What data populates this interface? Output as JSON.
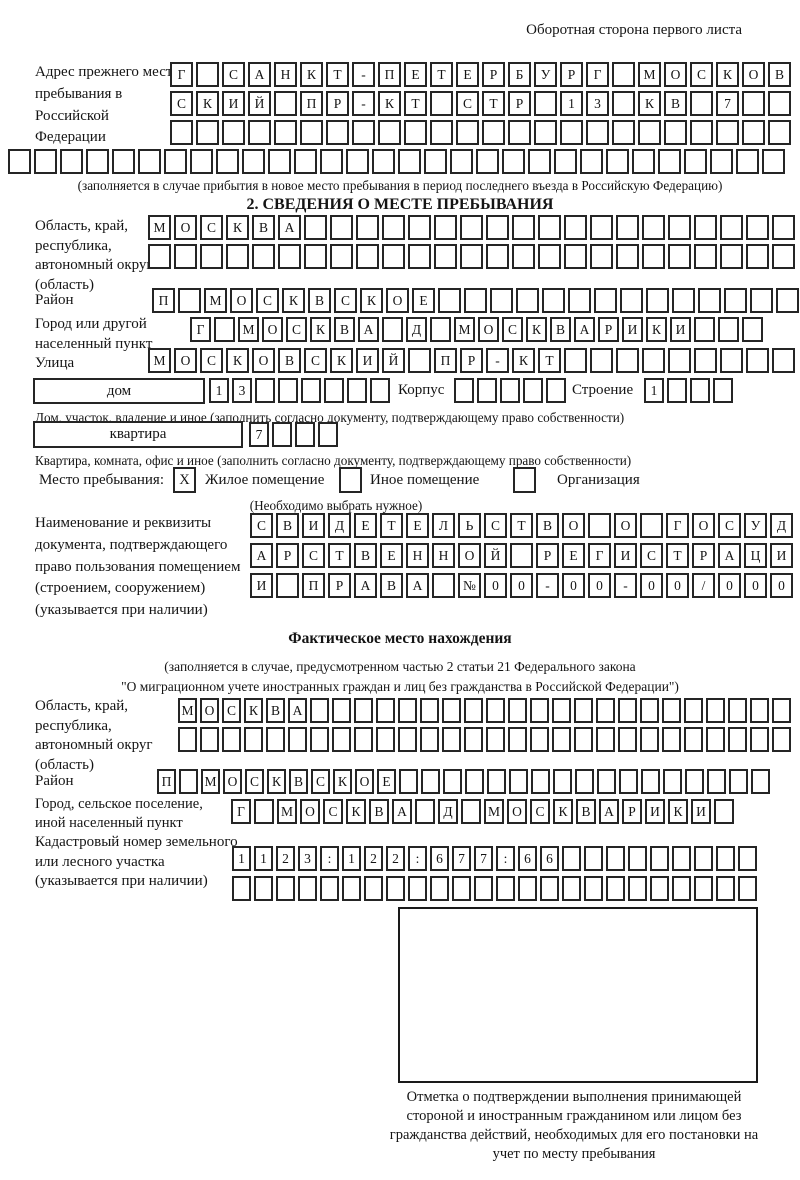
{
  "header": {
    "back_note": "Оборотная сторона первого листа"
  },
  "prev_address": {
    "label": "Адрес прежнего места пребывания в Российской Федерации",
    "row1": [
      "Г",
      "",
      "С",
      "А",
      "Н",
      "К",
      "Т",
      "-",
      "П",
      "Е",
      "Т",
      "Е",
      "Р",
      "Б",
      "У",
      "Р",
      "Г",
      "",
      "М",
      "О",
      "С",
      "К",
      "О",
      "В"
    ],
    "row2": [
      "С",
      "К",
      "И",
      "Й",
      "",
      "П",
      "Р",
      "-",
      "К",
      "Т",
      "",
      "С",
      "Т",
      "Р",
      "",
      "1",
      "3",
      "",
      "К",
      "В",
      "",
      "7",
      "",
      ""
    ],
    "row3": [
      "",
      "",
      "",
      "",
      "",
      "",
      "",
      "",
      "",
      "",
      "",
      "",
      "",
      "",
      "",
      "",
      "",
      "",
      "",
      "",
      "",
      "",
      "",
      ""
    ],
    "row4": [
      "",
      "",
      "",
      "",
      "",
      "",
      "",
      "",
      "",
      "",
      "",
      "",
      "",
      "",
      "",
      "",
      "",
      "",
      "",
      "",
      "",
      "",
      "",
      "",
      "",
      "",
      "",
      "",
      "",
      ""
    ],
    "note": "(заполняется в случае прибытия в новое место пребывания в период последнего въезда в Российскую Федерацию)"
  },
  "section2": {
    "title": "2. СВЕДЕНИЯ О МЕСТЕ ПРЕБЫВАНИЯ",
    "region_label": "Область, край, республика, автономный округ (область)",
    "region_row1": [
      "М",
      "О",
      "С",
      "К",
      "В",
      "А",
      "",
      "",
      "",
      "",
      "",
      "",
      "",
      "",
      "",
      "",
      "",
      "",
      "",
      "",
      "",
      "",
      "",
      "",
      ""
    ],
    "region_row2": [
      "",
      "",
      "",
      "",
      "",
      "",
      "",
      "",
      "",
      "",
      "",
      "",
      "",
      "",
      "",
      "",
      "",
      "",
      "",
      "",
      "",
      "",
      "",
      "",
      ""
    ],
    "district_label": "Район",
    "district_row": [
      "П",
      "",
      "М",
      "О",
      "С",
      "К",
      "В",
      "С",
      "К",
      "О",
      "Е",
      "",
      "",
      "",
      "",
      "",
      "",
      "",
      "",
      "",
      "",
      "",
      "",
      "",
      ""
    ],
    "city_label": "Город или другой населенный пункт",
    "city_row": [
      "Г",
      "",
      "М",
      "О",
      "С",
      "К",
      "В",
      "А",
      "",
      "Д",
      "",
      "М",
      "О",
      "С",
      "К",
      "В",
      "А",
      "Р",
      "И",
      "К",
      "И",
      "",
      "",
      ""
    ],
    "street_label": "Улица",
    "street_row": [
      "М",
      "О",
      "С",
      "К",
      "О",
      "В",
      "С",
      "К",
      "И",
      "Й",
      "",
      "П",
      "Р",
      "-",
      "К",
      "Т",
      "",
      "",
      "",
      "",
      "",
      "",
      "",
      "",
      ""
    ],
    "house_box_label": "дом",
    "house_cells": [
      "1",
      "3",
      "",
      "",
      "",
      "",
      "",
      ""
    ],
    "korpus_label": "Корпус",
    "korpus_cells": [
      "",
      "",
      "",
      "",
      ""
    ],
    "stroenie_label": "Строение",
    "stroenie_cells": [
      "1",
      "",
      "",
      ""
    ],
    "house_note": "Дом, участок, владение и иное (заполнить согласно документу, подтверждающему право собственности)",
    "apartment_box_label": "квартира",
    "apartment_cells": [
      "7",
      "",
      "",
      ""
    ],
    "apartment_note": "Квартира, комната, офис и иное (заполнить согласно документу, подтверждающему право собственности)",
    "stay_label": "Место пребывания:",
    "stay_options": [
      {
        "label": "Жилое помещение",
        "mark": "X"
      },
      {
        "label": "Иное помещение",
        "mark": ""
      },
      {
        "label": "Организация",
        "mark": ""
      }
    ],
    "stay_note": "(Необходимо выбрать нужное)",
    "doc_label": "Наименование и реквизиты документа, подтверждающего право пользования помещением (строением, сооружением) (указывается при наличии)",
    "doc_row1": [
      "С",
      "В",
      "И",
      "Д",
      "Е",
      "Т",
      "Е",
      "Л",
      "Ь",
      "С",
      "Т",
      "В",
      "О",
      "",
      "О",
      "",
      "Г",
      "О",
      "С",
      "У",
      "Д"
    ],
    "doc_row2": [
      "А",
      "Р",
      "С",
      "Т",
      "В",
      "Е",
      "Н",
      "Н",
      "О",
      "Й",
      "",
      "Р",
      "Е",
      "Г",
      "И",
      "С",
      "Т",
      "Р",
      "А",
      "Ц",
      "И"
    ],
    "doc_row3": [
      "И",
      "",
      "П",
      "Р",
      "А",
      "В",
      "А",
      "",
      "№",
      "0",
      "0",
      "-",
      "0",
      "0",
      "-",
      "0",
      "0",
      "/",
      "0",
      "0",
      "0"
    ]
  },
  "actual_location": {
    "title": "Фактическое место нахождения",
    "note_line1": "(заполняется в случае, предусмотренном частью 2 статьи 21 Федерального закона",
    "note_line2": "\"О миграционном учете иностранных граждан и лиц без гражданства в Российской Федерации\")",
    "region_label": "Область, край, республика, автономный округ (область)",
    "region_row1": [
      "М",
      "О",
      "С",
      "К",
      "В",
      "А",
      "",
      "",
      "",
      "",
      "",
      "",
      "",
      "",
      "",
      "",
      "",
      "",
      "",
      "",
      "",
      "",
      "",
      "",
      "",
      "",
      "",
      ""
    ],
    "region_row2": [
      "",
      "",
      "",
      "",
      "",
      "",
      "",
      "",
      "",
      "",
      "",
      "",
      "",
      "",
      "",
      "",
      "",
      "",
      "",
      "",
      "",
      "",
      "",
      "",
      "",
      "",
      "",
      ""
    ],
    "district_label": "Район",
    "district_row": [
      "П",
      "",
      "М",
      "О",
      "С",
      "К",
      "В",
      "С",
      "К",
      "О",
      "Е",
      "",
      "",
      "",
      "",
      "",
      "",
      "",
      "",
      "",
      "",
      "",
      "",
      "",
      "",
      "",
      "",
      ""
    ],
    "city_label": "Город, сельское поселение, иной населенный пункт",
    "city_row": [
      "Г",
      "",
      "М",
      "О",
      "С",
      "К",
      "В",
      "А",
      "",
      "Д",
      "",
      "М",
      "О",
      "С",
      "К",
      "В",
      "А",
      "Р",
      "И",
      "К",
      "И",
      ""
    ],
    "cadastral_label": "Кадастровый номер земельного или лесного участка (указывается при наличии)",
    "cadastral_row1": [
      "1",
      "1",
      "2",
      "3",
      ":",
      "1",
      "2",
      "2",
      ":",
      "6",
      "7",
      "7",
      ":",
      "6",
      "6",
      "",
      "",
      "",
      "",
      "",
      "",
      "",
      "",
      ""
    ],
    "cadastral_row2": [
      "",
      "",
      "",
      "",
      "",
      "",
      "",
      "",
      "",
      "",
      "",
      "",
      "",
      "",
      "",
      "",
      "",
      "",
      "",
      "",
      "",
      "",
      "",
      ""
    ]
  },
  "stamp": {
    "caption": "Отметка о подтверждении выполнения принимающей стороной и иностранным гражданином или лицом без гражданства действий, необходимых для его постановки на учет по месту пребывания"
  }
}
